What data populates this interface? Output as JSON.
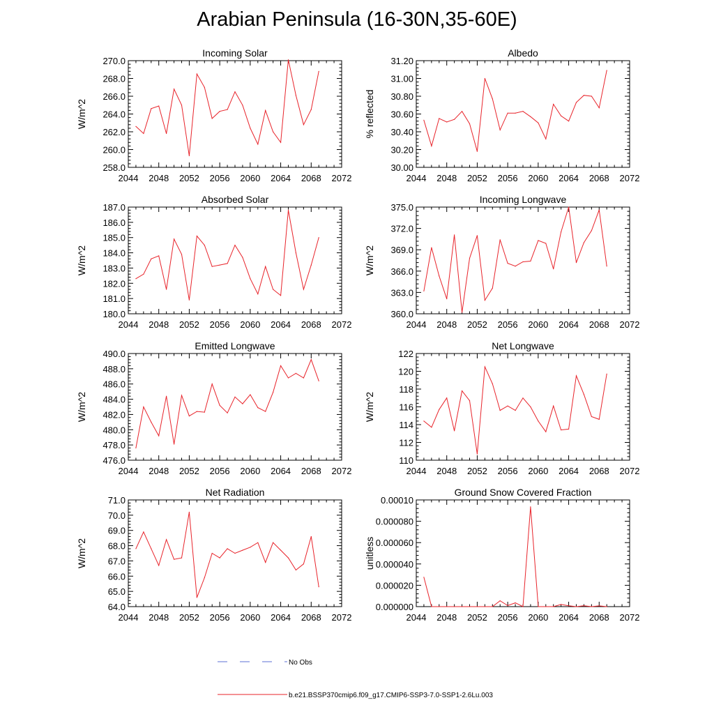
{
  "title": "Arabian Peninsula (16-30N,35-60E)",
  "colors": {
    "model_line": "#e8232a",
    "obs_line": "#5b6fd6",
    "axis": "#000000"
  },
  "legend": {
    "obs_label": "No Obs",
    "model_label": "b.e21.BSSP370cmip6.f09_g17.CMIP6-SSP3-7.0-SSP1-2.6Lu.003"
  },
  "chart_data": [
    {
      "type": "line",
      "title": "Incoming Solar",
      "ylabel": "W/m^2",
      "xlim": [
        2044,
        2072
      ],
      "xticks": [
        "2044",
        "2048",
        "2052",
        "2056",
        "2060",
        "2064",
        "2068",
        "2072"
      ],
      "ylim": [
        258,
        270
      ],
      "yticks": [
        "258.0",
        "260.0",
        "262.0",
        "264.0",
        "266.0",
        "268.0",
        "270.0"
      ],
      "x": [
        2045,
        2046,
        2047,
        2048,
        2049,
        2050,
        2051,
        2052,
        2053,
        2054,
        2055,
        2056,
        2057,
        2058,
        2059,
        2060,
        2061,
        2062,
        2063,
        2064,
        2065,
        2066,
        2067,
        2068,
        2069
      ],
      "values": [
        262.6,
        261.8,
        264.6,
        264.9,
        261.8,
        266.8,
        265.0,
        259.3,
        268.5,
        267.0,
        263.5,
        264.3,
        264.5,
        266.5,
        265.0,
        262.4,
        260.6,
        264.4,
        262.0,
        260.8,
        270.1,
        266.1,
        262.8,
        264.5,
        268.8
      ]
    },
    {
      "type": "line",
      "title": "Albedo",
      "ylabel": "% reflected",
      "xlim": [
        2044,
        2072
      ],
      "xticks": [
        "2044",
        "2048",
        "2052",
        "2056",
        "2060",
        "2064",
        "2068",
        "2072"
      ],
      "ylim": [
        30.0,
        31.2
      ],
      "yticks": [
        "30.00",
        "30.20",
        "30.40",
        "30.60",
        "30.80",
        "31.00",
        "31.20"
      ],
      "x": [
        2045,
        2046,
        2047,
        2048,
        2049,
        2050,
        2051,
        2052,
        2053,
        2054,
        2055,
        2056,
        2057,
        2058,
        2059,
        2060,
        2061,
        2062,
        2063,
        2064,
        2065,
        2066,
        2067,
        2068,
        2069
      ],
      "values": [
        30.53,
        30.24,
        30.55,
        30.51,
        30.54,
        30.63,
        30.49,
        30.18,
        31.0,
        30.77,
        30.42,
        30.61,
        30.61,
        30.63,
        30.57,
        30.5,
        30.32,
        30.71,
        30.58,
        30.52,
        30.73,
        30.81,
        30.8,
        30.67,
        31.09
      ]
    },
    {
      "type": "line",
      "title": "Absorbed Solar",
      "ylabel": "W/m^2",
      "xlim": [
        2044,
        2072
      ],
      "xticks": [
        "2044",
        "2048",
        "2052",
        "2056",
        "2060",
        "2064",
        "2068",
        "2072"
      ],
      "ylim": [
        180,
        187
      ],
      "yticks": [
        "180.0",
        "181.0",
        "182.0",
        "183.0",
        "184.0",
        "185.0",
        "186.0",
        "187.0"
      ],
      "x": [
        2045,
        2046,
        2047,
        2048,
        2049,
        2050,
        2051,
        2052,
        2053,
        2054,
        2055,
        2056,
        2057,
        2058,
        2059,
        2060,
        2061,
        2062,
        2063,
        2064,
        2065,
        2066,
        2067,
        2068,
        2069
      ],
      "values": [
        182.3,
        182.6,
        183.6,
        183.8,
        181.6,
        184.9,
        183.9,
        180.9,
        185.1,
        184.5,
        183.1,
        183.2,
        183.3,
        184.5,
        183.7,
        182.3,
        181.3,
        183.1,
        181.6,
        181.2,
        186.8,
        184.0,
        181.6,
        183.2,
        185.0
      ]
    },
    {
      "type": "line",
      "title": "Incoming Longwave",
      "ylabel": "W/m^2",
      "xlim": [
        2044,
        2072
      ],
      "xticks": [
        "2044",
        "2048",
        "2052",
        "2056",
        "2060",
        "2064",
        "2068",
        "2072"
      ],
      "ylim": [
        360,
        375
      ],
      "yticks": [
        "360.0",
        "363.0",
        "366.0",
        "369.0",
        "372.0",
        "375.0"
      ],
      "x": [
        2045,
        2046,
        2047,
        2048,
        2049,
        2050,
        2051,
        2052,
        2053,
        2054,
        2055,
        2056,
        2057,
        2058,
        2059,
        2060,
        2061,
        2062,
        2063,
        2064,
        2065,
        2066,
        2067,
        2068,
        2069
      ],
      "values": [
        363.2,
        369.3,
        365.3,
        362.1,
        371.1,
        360.2,
        367.8,
        371.0,
        361.9,
        363.6,
        370.4,
        367.1,
        366.7,
        367.3,
        367.4,
        370.3,
        369.9,
        366.3,
        371.5,
        375.0,
        367.2,
        370.0,
        371.7,
        374.6,
        366.7
      ]
    },
    {
      "type": "line",
      "title": "Emitted Longwave",
      "ylabel": "W/m^2",
      "xlim": [
        2044,
        2072
      ],
      "xticks": [
        "2044",
        "2048",
        "2052",
        "2056",
        "2060",
        "2064",
        "2068",
        "2072"
      ],
      "ylim": [
        476,
        490
      ],
      "yticks": [
        "476.0",
        "478.0",
        "480.0",
        "482.0",
        "484.0",
        "486.0",
        "488.0",
        "490.0"
      ],
      "x": [
        2045,
        2046,
        2047,
        2048,
        2049,
        2050,
        2051,
        2052,
        2053,
        2054,
        2055,
        2056,
        2057,
        2058,
        2059,
        2060,
        2061,
        2062,
        2063,
        2064,
        2065,
        2066,
        2067,
        2068,
        2069
      ],
      "values": [
        477.6,
        483.0,
        481.0,
        479.2,
        484.4,
        478.1,
        484.5,
        481.8,
        482.4,
        482.3,
        486.0,
        483.2,
        482.2,
        484.3,
        483.4,
        484.6,
        482.9,
        482.4,
        484.9,
        488.4,
        486.8,
        487.4,
        486.8,
        489.2,
        486.4
      ]
    },
    {
      "type": "line",
      "title": "Net Longwave",
      "ylabel": "W/m^2",
      "xlim": [
        2044,
        2072
      ],
      "xticks": [
        "2044",
        "2048",
        "2052",
        "2056",
        "2060",
        "2064",
        "2068",
        "2072"
      ],
      "ylim": [
        110,
        122
      ],
      "yticks": [
        "110",
        "112",
        "114",
        "116",
        "118",
        "120",
        "122"
      ],
      "x": [
        2045,
        2046,
        2047,
        2048,
        2049,
        2050,
        2051,
        2052,
        2053,
        2054,
        2055,
        2056,
        2057,
        2058,
        2059,
        2060,
        2061,
        2062,
        2063,
        2064,
        2065,
        2066,
        2067,
        2068,
        2069
      ],
      "values": [
        114.4,
        113.7,
        115.7,
        117.0,
        113.3,
        117.8,
        116.7,
        110.7,
        120.5,
        118.6,
        115.6,
        116.1,
        115.6,
        117.0,
        116.0,
        114.4,
        113.2,
        116.1,
        113.4,
        113.5,
        119.5,
        117.4,
        114.9,
        114.6,
        119.7
      ]
    },
    {
      "type": "line",
      "title": "Net Radiation",
      "ylabel": "W/m^2",
      "xlim": [
        2044,
        2072
      ],
      "xticks": [
        "2044",
        "2048",
        "2052",
        "2056",
        "2060",
        "2064",
        "2068",
        "2072"
      ],
      "ylim": [
        64,
        71
      ],
      "yticks": [
        "64.0",
        "65.0",
        "66.0",
        "67.0",
        "68.0",
        "69.0",
        "70.0",
        "71.0"
      ],
      "x": [
        2045,
        2046,
        2047,
        2048,
        2049,
        2050,
        2051,
        2052,
        2053,
        2054,
        2055,
        2056,
        2057,
        2058,
        2059,
        2060,
        2061,
        2062,
        2063,
        2064,
        2065,
        2066,
        2067,
        2068,
        2069
      ],
      "values": [
        67.8,
        68.9,
        67.8,
        66.7,
        68.4,
        67.1,
        67.2,
        70.2,
        64.6,
        65.9,
        67.5,
        67.2,
        67.8,
        67.5,
        67.7,
        67.9,
        68.2,
        66.9,
        68.2,
        67.7,
        67.2,
        66.4,
        66.8,
        68.6,
        65.3
      ]
    },
    {
      "type": "line",
      "title": "Ground Snow Covered Fraction",
      "ylabel": "unitless",
      "xlim": [
        2044,
        2072
      ],
      "xticks": [
        "2044",
        "2048",
        "2052",
        "2056",
        "2060",
        "2064",
        "2068",
        "2072"
      ],
      "ylim": [
        0,
        0.0001
      ],
      "yticks": [
        "0.000000",
        "0.000020",
        "0.000040",
        "0.000060",
        "0.000080",
        "0.00010"
      ],
      "x": [
        2045,
        2046,
        2047,
        2048,
        2049,
        2050,
        2051,
        2052,
        2053,
        2054,
        2055,
        2056,
        2057,
        2058,
        2059,
        2060,
        2061,
        2062,
        2063,
        2064,
        2065,
        2066,
        2067,
        2068,
        2069
      ],
      "values": [
        2.75e-05,
        0,
        0,
        0,
        0,
        0,
        0,
        0,
        0,
        0,
        5.5e-06,
        1e-06,
        3.5e-06,
        0,
        9.35e-05,
        0,
        0,
        0,
        2e-06,
        8e-07,
        0,
        8e-07,
        0,
        7e-07,
        0
      ]
    }
  ]
}
